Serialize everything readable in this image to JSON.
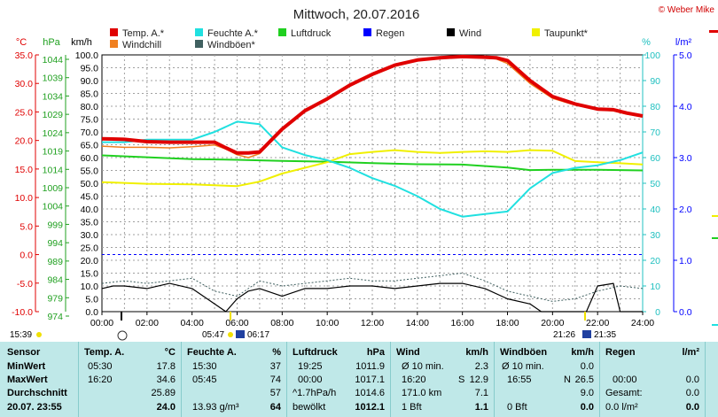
{
  "header": {
    "title": "Mittwoch, 20.07.2016",
    "copyright": "© Weber Mike"
  },
  "axes": {
    "left_units": [
      "°C",
      "hPa",
      "km/h"
    ],
    "right_units": [
      "%",
      "l/m²"
    ],
    "temp_ticks": [
      "35.0",
      "30.0",
      "25.0",
      "20.0",
      "15.0",
      "10.0",
      "5.0",
      "0.0",
      "-5.0",
      "-10.0"
    ],
    "hpa_ticks": [
      "1044",
      "1039",
      "1034",
      "1029",
      "1024",
      "1019",
      "1014",
      "1009",
      "1004",
      "999",
      "994",
      "989",
      "984",
      "979",
      "974"
    ],
    "kmh_ticks": [
      "100.0",
      "95.0",
      "90.0",
      "85.0",
      "80.0",
      "75.0",
      "70.0",
      "65.0",
      "60.0",
      "55.0",
      "50.0",
      "45.0",
      "40.0",
      "35.0",
      "30.0",
      "25.0",
      "20.0",
      "15.0",
      "10.0",
      "5.0",
      "0.0"
    ],
    "pct_ticks": [
      "100",
      "90",
      "80",
      "70",
      "60",
      "50",
      "40",
      "30",
      "20",
      "10",
      "0"
    ],
    "rain_ticks": [
      "5.0",
      "4.0",
      "3.0",
      "2.0",
      "1.0",
      "0.0"
    ],
    "time_ticks": [
      "00:00",
      "02:00",
      "04:00",
      "06:00",
      "08:00",
      "10:00",
      "12:00",
      "14:00",
      "16:00",
      "18:00",
      "20:00",
      "22:00",
      "24:00"
    ]
  },
  "legend": [
    {
      "label": "Temp. A.*",
      "color": "#e00000"
    },
    {
      "label": "Feuchte A.*",
      "color": "#20e0e0"
    },
    {
      "label": "Luftdruck",
      "color": "#20d020"
    },
    {
      "label": "Regen",
      "color": "#0000ff"
    },
    {
      "label": "Wind",
      "color": "#000000"
    },
    {
      "label": "Taupunkt*",
      "color": "#f0f000"
    },
    {
      "label": "Windchill",
      "color": "#f08020"
    },
    {
      "label": "Windböen*",
      "color": "#406060"
    }
  ],
  "sun": {
    "left_time": "15:39",
    "sunrise": "05:47",
    "sunrise2": "06:17",
    "sunset": "21:26",
    "sunset2": "21:35"
  },
  "chart_data": {
    "type": "line",
    "title": "Mittwoch, 20.07.2016",
    "x_unit": "hour",
    "xlim": [
      0,
      24
    ],
    "grid": true,
    "series": [
      {
        "name": "Temp. A.*",
        "unit": "°C",
        "color": "#e00000",
        "x": [
          0,
          1,
          2,
          3,
          4,
          5,
          5.5,
          6,
          6.5,
          7,
          8,
          9,
          10,
          11,
          12,
          13,
          14,
          15,
          16,
          17,
          17.5,
          18,
          19,
          20,
          21,
          22,
          22.7,
          23.3,
          24
        ],
        "y": [
          20.3,
          20.2,
          19.8,
          19.7,
          19.7,
          19.7,
          18.7,
          17.8,
          17.8,
          18.0,
          22.0,
          25.2,
          27.3,
          29.7,
          31.6,
          33.2,
          34.1,
          34.5,
          34.7,
          34.6,
          34.5,
          34.0,
          30.5,
          27.7,
          26.4,
          25.5,
          25.4,
          24.8,
          24.3
        ]
      },
      {
        "name": "Windchill",
        "unit": "°C",
        "color": "#f08020",
        "x": [
          0,
          1,
          2,
          3,
          4,
          5,
          5.5,
          6,
          6.5,
          7,
          8,
          9,
          10,
          11,
          12,
          13,
          14,
          15,
          16,
          17,
          17.5,
          18,
          19,
          20,
          21,
          22,
          22.7,
          23.3,
          24
        ],
        "y": [
          19.0,
          18.8,
          18.8,
          18.7,
          18.9,
          19.2,
          18.5,
          17.5,
          17.0,
          17.7,
          21.8,
          25.0,
          27.1,
          29.5,
          31.4,
          33.0,
          34.0,
          34.4,
          34.6,
          34.5,
          34.3,
          33.5,
          30.0,
          27.4,
          26.2,
          25.4,
          25.2,
          24.6,
          24.2
        ]
      },
      {
        "name": "Feuchte A.*",
        "unit": "%",
        "color": "#20e0e0",
        "x": [
          0,
          1,
          2,
          3,
          4,
          5,
          6,
          7,
          8,
          9,
          10,
          11,
          12,
          13,
          14,
          15,
          16,
          17,
          18,
          19,
          20,
          21,
          22,
          23,
          24
        ],
        "y": [
          66,
          66,
          67,
          67,
          67,
          70,
          74,
          73,
          64,
          61,
          59,
          56,
          52,
          49,
          45,
          40,
          37,
          38,
          39,
          48,
          54,
          56,
          57,
          59,
          62
        ]
      },
      {
        "name": "Luftdruck",
        "unit": "hPa",
        "color": "#20d020",
        "x": [
          0,
          2,
          4,
          6,
          8,
          10,
          12,
          14,
          16,
          18,
          19,
          20,
          22,
          24
        ],
        "y": [
          1016.6,
          1016.1,
          1015.6,
          1015.4,
          1015.1,
          1014.9,
          1014.5,
          1014.2,
          1014.1,
          1013.3,
          1012.6,
          1012.7,
          1012.7,
          1012.5
        ]
      },
      {
        "name": "Taupunkt*",
        "unit": "°C",
        "color": "#f0f000",
        "x": [
          0,
          2,
          4,
          6,
          7,
          8,
          10,
          11,
          12,
          13,
          14,
          15,
          16,
          17,
          18,
          19,
          20,
          21,
          22,
          23,
          24
        ],
        "y": [
          12.7,
          12.4,
          12.3,
          12.0,
          12.8,
          14.2,
          16.2,
          17.6,
          18.0,
          18.3,
          18.0,
          17.8,
          18.0,
          18.1,
          18.0,
          18.3,
          18.2,
          16.4,
          16.2,
          16.0,
          15.8
        ]
      },
      {
        "name": "Wind",
        "unit": "km/h",
        "color": "#000000",
        "x": [
          0,
          0.5,
          1,
          2,
          3,
          4,
          5,
          5.5,
          6,
          6.5,
          7,
          8,
          9,
          10,
          11,
          12,
          13,
          14,
          15,
          16,
          17,
          18,
          19,
          19.5,
          20,
          21,
          21.5,
          22,
          22.7,
          23,
          23.5,
          24
        ],
        "y": [
          9,
          10,
          10,
          9,
          11,
          9,
          3,
          0,
          5,
          8,
          9,
          6,
          9,
          9,
          10,
          10,
          9,
          10,
          11,
          11,
          9,
          5,
          3,
          0,
          0,
          0,
          0,
          10,
          11,
          0,
          0,
          0
        ]
      },
      {
        "name": "Windböen*",
        "unit": "km/h",
        "color": "#406060",
        "x": [
          0,
          1,
          2,
          3,
          4,
          5,
          6,
          7,
          8,
          9,
          10,
          11,
          12,
          13,
          14,
          15,
          16,
          17,
          18,
          19,
          20,
          21,
          22,
          23,
          24
        ],
        "y": [
          11,
          12,
          11,
          12,
          13,
          8,
          6,
          12,
          10,
          11,
          12,
          13,
          12,
          12,
          13,
          14,
          15,
          12,
          8,
          6,
          4,
          5,
          8,
          10,
          9
        ]
      }
    ],
    "reference_lines": [
      {
        "name": "Regen",
        "unit": "l/m²",
        "value": 0,
        "color": "#0000ff"
      }
    ]
  },
  "stats": {
    "columns": [
      {
        "header": "Sensor",
        "unit": "",
        "rows": [
          "MinWert",
          "MaxWert",
          "Durchschnitt",
          "20.07. 23:55"
        ]
      },
      {
        "header": "Temp. A.",
        "unit": "°C",
        "rows_left": [
          "05:30",
          "16:20",
          "",
          ""
        ],
        "rows_right": [
          "17.8",
          "34.6",
          "25.89",
          "24.0"
        ]
      },
      {
        "header": "Feuchte A.",
        "unit": "%",
        "rows_left": [
          "15:30",
          "05:45",
          "",
          "13.93 g/m³"
        ],
        "rows_right": [
          "37",
          "74",
          "57",
          "64"
        ]
      },
      {
        "header": "Luftdruck",
        "unit": "hPa",
        "rows_left": [
          "19:25",
          "00:00",
          "^1.7hPa/h",
          "bewölkt"
        ],
        "rows_right": [
          "1011.9",
          "1017.1",
          "1014.6",
          "1012.1"
        ]
      },
      {
        "header": "Wind",
        "unit": "km/h",
        "rows_left": [
          "Ø 10 min.",
          "16:20",
          "171.0 km",
          "1 Bft"
        ],
        "rows_mid": [
          "",
          "S",
          "",
          ""
        ],
        "rows_right": [
          "2.3",
          "12.9",
          "7.1",
          "1.1"
        ]
      },
      {
        "header": "Windböen",
        "unit": "km/h",
        "rows_left": [
          "Ø 10 min.",
          "16:55",
          "",
          "0 Bft"
        ],
        "rows_mid": [
          "",
          "N",
          "",
          ""
        ],
        "rows_right": [
          "0.0",
          "26.5",
          "9.0",
          "0.0"
        ]
      },
      {
        "header": "Regen",
        "unit": "l/m²",
        "rows_left": [
          "",
          "00:00",
          "Gesamt:",
          "0.0 l/m²"
        ],
        "rows_right": [
          "",
          "0.0",
          "0.0",
          "0.0"
        ]
      }
    ]
  }
}
